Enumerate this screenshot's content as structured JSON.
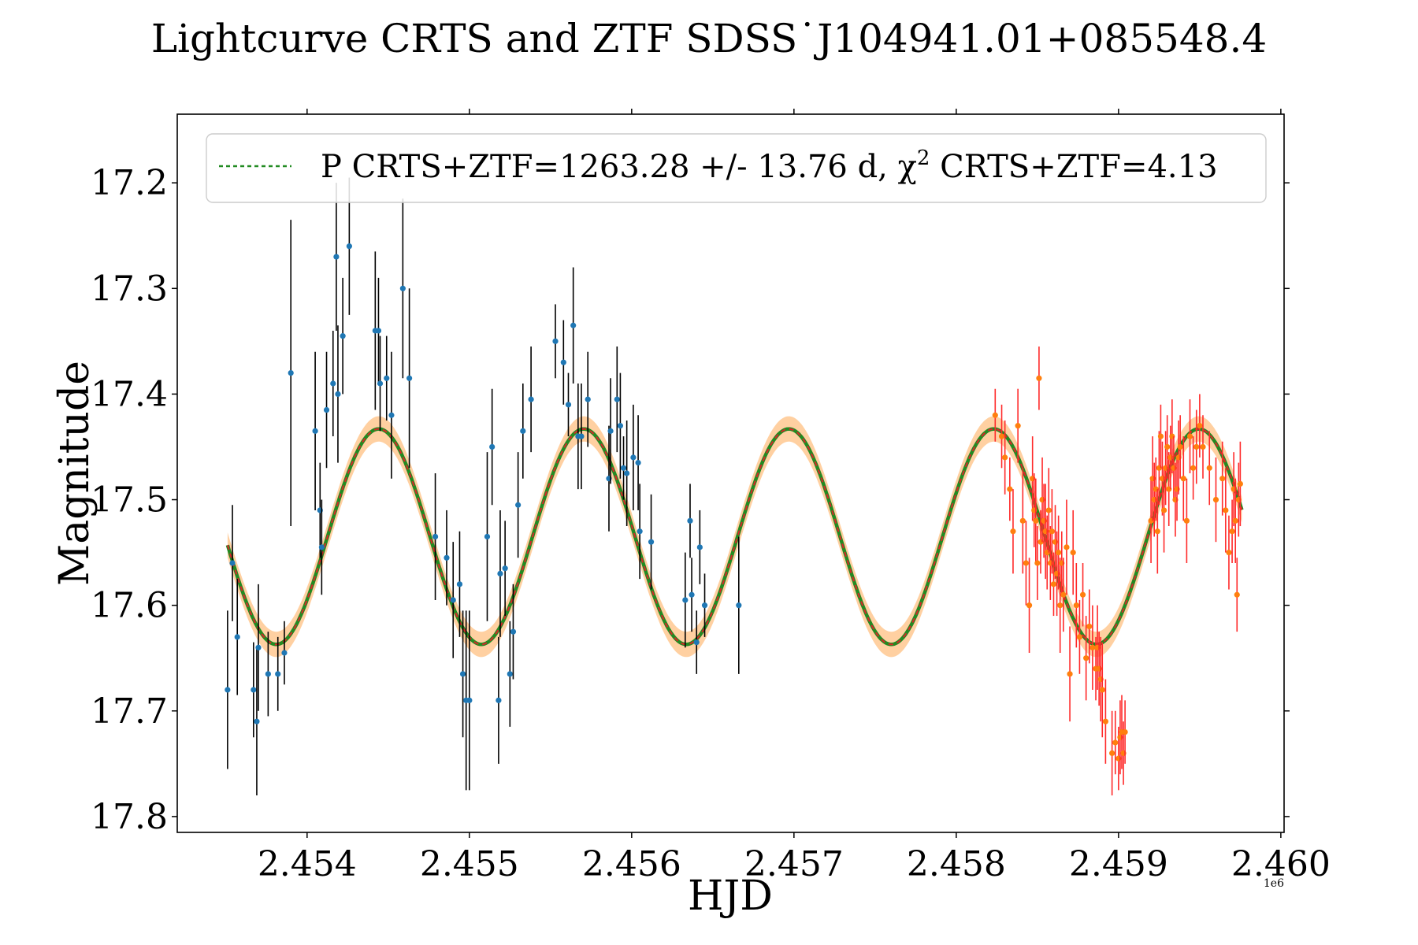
{
  "chart_data": {
    "type": "scatter",
    "title": "Lightcurve CRTS and ZTF SDSS˙J104941.01+085548.4",
    "xlabel": "HJD",
    "ylabel": "Magnitude",
    "x_offset_label": "1e6",
    "xlim": [
      2453200,
      2460020
    ],
    "ylim": [
      17.815,
      17.135
    ],
    "y_inverted": true,
    "x_ticks": [
      2454000,
      2455000,
      2456000,
      2457000,
      2458000,
      2459000,
      2460000
    ],
    "x_tick_labels": [
      "2.454",
      "2.455",
      "2.456",
      "2.457",
      "2.458",
      "2.459",
      "2.460"
    ],
    "y_ticks": [
      17.2,
      17.3,
      17.4,
      17.5,
      17.6,
      17.7,
      17.8
    ],
    "y_tick_labels": [
      "17.2",
      "17.3",
      "17.4",
      "17.5",
      "17.6",
      "17.7",
      "17.8"
    ],
    "legend": {
      "position": "top",
      "label": "P CRTS+ZTF=1263.28 +/- 13.76 d, χ² CRTS+ZTF=4.13",
      "label_prefix": "P CRTS+ZTF=1263.28 +/- 13.76 d, χ",
      "label_sup": "2",
      "label_suffix": " CRTS+ZTF=4.13"
    },
    "model": {
      "name": "sinusoidal fit",
      "period_days": 1263.28,
      "period_err_days": 13.76,
      "chi2": 4.13,
      "mean_mag": 17.535,
      "amplitude_mag": 0.102,
      "phase_ref_min_hjd": 2453810,
      "band_mag": 0.012,
      "x_start": 2453510,
      "x_end": 2459760,
      "line_color": "#228b22",
      "dash_color": "#d62728",
      "band_color": "#ffc890"
    },
    "series": [
      {
        "name": "CRTS",
        "point_color": "#1f77b4",
        "err_color": "#000000",
        "x": [
          2453510,
          2453540,
          2453570,
          2453670,
          2453690,
          2453700,
          2453760,
          2453820,
          2453860,
          2453900,
          2454050,
          2454080,
          2454090,
          2454120,
          2454160,
          2454180,
          2454190,
          2454220,
          2454260,
          2454420,
          2454440,
          2454450,
          2454490,
          2454520,
          2454590,
          2454630,
          2454790,
          2454860,
          2454900,
          2454940,
          2454960,
          2454980,
          2455000,
          2455110,
          2455140,
          2455180,
          2455190,
          2455220,
          2455250,
          2455270,
          2455300,
          2455330,
          2455380,
          2455530,
          2455580,
          2455610,
          2455640,
          2455670,
          2455690,
          2455730,
          2455860,
          2455870,
          2455910,
          2455930,
          2455950,
          2455970,
          2456010,
          2456040,
          2456050,
          2456120,
          2456330,
          2456360,
          2456370,
          2456400,
          2456420,
          2456450,
          2456660
        ],
        "y": [
          17.68,
          17.56,
          17.63,
          17.68,
          17.71,
          17.64,
          17.665,
          17.665,
          17.645,
          17.38,
          17.435,
          17.51,
          17.545,
          17.415,
          17.39,
          17.27,
          17.4,
          17.345,
          17.26,
          17.34,
          17.34,
          17.39,
          17.385,
          17.42,
          17.3,
          17.385,
          17.535,
          17.555,
          17.595,
          17.58,
          17.665,
          17.69,
          17.69,
          17.535,
          17.45,
          17.69,
          17.57,
          17.565,
          17.665,
          17.625,
          17.505,
          17.435,
          17.405,
          17.35,
          17.37,
          17.41,
          17.335,
          17.44,
          17.44,
          17.405,
          17.48,
          17.435,
          17.405,
          17.43,
          17.47,
          17.475,
          17.46,
          17.465,
          17.53,
          17.54,
          17.595,
          17.52,
          17.59,
          17.635,
          17.545,
          17.6,
          17.6
        ],
        "err": [
          0.075,
          0.055,
          0.055,
          0.045,
          0.07,
          0.06,
          0.04,
          0.035,
          0.03,
          0.145,
          0.075,
          0.045,
          0.045,
          0.055,
          0.05,
          0.07,
          0.065,
          0.055,
          0.065,
          0.075,
          0.05,
          0.045,
          0.04,
          0.06,
          0.085,
          0.085,
          0.06,
          0.045,
          0.055,
          0.05,
          0.06,
          0.085,
          0.085,
          0.08,
          0.055,
          0.06,
          0.06,
          0.045,
          0.05,
          0.045,
          0.05,
          0.045,
          0.05,
          0.035,
          0.04,
          0.03,
          0.055,
          0.05,
          0.05,
          0.045,
          0.05,
          0.05,
          0.05,
          0.05,
          0.03,
          0.05,
          0.05,
          0.045,
          0.045,
          0.045,
          0.045,
          0.035,
          0.035,
          0.03,
          0.035,
          0.03,
          0.065
        ]
      },
      {
        "name": "ZTF",
        "point_color": "#ff7f0e",
        "err_color": "#ff2a2a",
        "x": [
          2458240,
          2458280,
          2458300,
          2458330,
          2458350,
          2458380,
          2458410,
          2458430,
          2458450,
          2458470,
          2458480,
          2458490,
          2458500,
          2458510,
          2458520,
          2458530,
          2458540,
          2458550,
          2458560,
          2458570,
          2458580,
          2458590,
          2458600,
          2458610,
          2458620,
          2458630,
          2458640,
          2458650,
          2458660,
          2458680,
          2458700,
          2458720,
          2458740,
          2458760,
          2458780,
          2458800,
          2458820,
          2458840,
          2458860,
          2458870,
          2458880,
          2458890,
          2458900,
          2458920,
          2458960,
          2458980,
          2459000,
          2459010,
          2459020,
          2459030,
          2459040,
          2459200,
          2459210,
          2459220,
          2459230,
          2459240,
          2459250,
          2459260,
          2459270,
          2459280,
          2459290,
          2459300,
          2459310,
          2459320,
          2459330,
          2459340,
          2459350,
          2459360,
          2459370,
          2459380,
          2459400,
          2459420,
          2459440,
          2459460,
          2459480,
          2459500,
          2459520,
          2459560,
          2459600,
          2459640,
          2459660,
          2459680,
          2459700,
          2459710,
          2459720,
          2459730,
          2459740,
          2459750
        ],
        "y": [
          17.42,
          17.44,
          17.46,
          17.49,
          17.53,
          17.43,
          17.52,
          17.56,
          17.6,
          17.48,
          17.51,
          17.52,
          17.56,
          17.385,
          17.54,
          17.5,
          17.52,
          17.53,
          17.55,
          17.51,
          17.56,
          17.53,
          17.58,
          17.54,
          17.57,
          17.55,
          17.6,
          17.56,
          17.59,
          17.545,
          17.665,
          17.55,
          17.6,
          17.63,
          17.59,
          17.65,
          17.62,
          17.64,
          17.66,
          17.64,
          17.66,
          17.67,
          17.68,
          17.71,
          17.74,
          17.73,
          17.745,
          17.725,
          17.72,
          17.74,
          17.72,
          17.52,
          17.48,
          17.5,
          17.49,
          17.53,
          17.47,
          17.44,
          17.48,
          17.51,
          17.47,
          17.45,
          17.49,
          17.46,
          17.44,
          17.47,
          17.5,
          17.49,
          17.46,
          17.45,
          17.48,
          17.52,
          17.44,
          17.47,
          17.45,
          17.43,
          17.45,
          17.47,
          17.5,
          17.48,
          17.51,
          17.55,
          17.53,
          17.49,
          17.52,
          17.59,
          17.5,
          17.485
        ],
        "err": [
          0.025,
          0.03,
          0.035,
          0.03,
          0.04,
          0.035,
          0.05,
          0.04,
          0.045,
          0.04,
          0.035,
          0.04,
          0.035,
          0.03,
          0.03,
          0.04,
          0.035,
          0.045,
          0.035,
          0.04,
          0.035,
          0.04,
          0.03,
          0.035,
          0.04,
          0.035,
          0.045,
          0.03,
          0.035,
          0.045,
          0.045,
          0.04,
          0.04,
          0.035,
          0.03,
          0.04,
          0.035,
          0.04,
          0.03,
          0.04,
          0.035,
          0.04,
          0.045,
          0.04,
          0.04,
          0.03,
          0.03,
          0.035,
          0.035,
          0.03,
          0.03,
          0.04,
          0.04,
          0.035,
          0.03,
          0.04,
          0.035,
          0.03,
          0.035,
          0.04,
          0.035,
          0.03,
          0.035,
          0.03,
          0.035,
          0.03,
          0.035,
          0.03,
          0.035,
          0.03,
          0.04,
          0.04,
          0.035,
          0.03,
          0.035,
          0.03,
          0.03,
          0.035,
          0.04,
          0.035,
          0.04,
          0.035,
          0.03,
          0.035,
          0.04,
          0.035,
          0.035,
          0.04
        ]
      }
    ]
  }
}
